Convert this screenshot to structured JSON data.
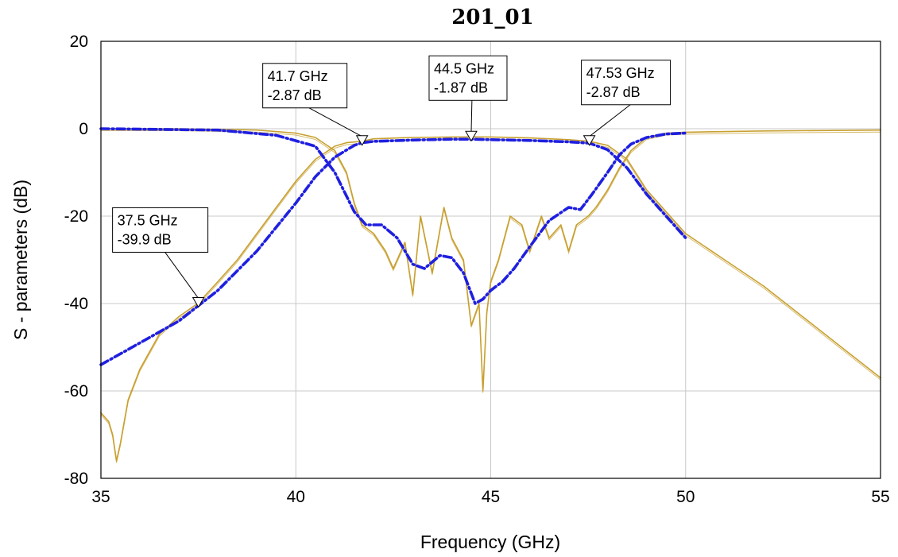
{
  "chart_data": {
    "type": "line",
    "title": "201_01",
    "xlabel": "Frequency (GHz)",
    "ylabel": "S - parameters (dB)",
    "xlim": [
      35,
      55
    ],
    "ylim": [
      -80,
      20
    ],
    "xticks": [
      35,
      40,
      45,
      50,
      55
    ],
    "yticks": [
      20,
      0,
      -20,
      -40,
      -60,
      -80
    ],
    "xtick_labels": [
      "35",
      "40",
      "45",
      "50",
      "55"
    ],
    "ytick_labels": [
      "20",
      "0",
      "-20",
      "-40",
      "-60",
      "-80"
    ],
    "grid": true,
    "series": [
      {
        "role": "measured-S21",
        "color": "#c8a030",
        "style": "solid",
        "x": [
          35,
          35.2,
          35.3,
          35.4,
          35.5,
          35.7,
          36,
          36.5,
          37,
          37.5,
          38,
          38.5,
          39,
          39.5,
          40,
          40.5,
          41,
          41.3,
          41.7,
          42,
          43,
          44,
          44.5,
          45,
          46,
          47,
          47.53,
          48,
          48.5,
          49,
          50,
          51,
          52,
          53,
          54,
          55
        ],
        "y": [
          -65,
          -67,
          -70,
          -76,
          -72,
          -62,
          -55,
          -47,
          -43,
          -39.9,
          -35,
          -30,
          -24,
          -18,
          -12,
          -7,
          -4,
          -3.2,
          -2.87,
          -2.3,
          -2,
          -1.9,
          -1.87,
          -1.9,
          -2.1,
          -2.5,
          -2.87,
          -3.8,
          -7,
          -14,
          -24,
          -30,
          -36,
          -43,
          -50,
          -57
        ]
      },
      {
        "role": "measured-S11",
        "color": "#c8a030",
        "style": "solid",
        "x": [
          35,
          37,
          39,
          40,
          40.5,
          41,
          41.3,
          41.5,
          41.7,
          42,
          42.3,
          42.5,
          42.8,
          43,
          43.2,
          43.5,
          43.8,
          44,
          44.3,
          44.5,
          44.7,
          44.8,
          44.9,
          45,
          45.2,
          45.5,
          45.8,
          46,
          46.3,
          46.5,
          46.8,
          47,
          47.2,
          47.5,
          47.7,
          48,
          48.3,
          48.6,
          49,
          49.5,
          50,
          52,
          55
        ],
        "y": [
          0,
          0,
          -0.3,
          -1,
          -2,
          -5,
          -10,
          -17,
          -22,
          -24,
          -28,
          -32,
          -26,
          -38,
          -20,
          -33,
          -18,
          -25,
          -30,
          -45,
          -40,
          -60,
          -42,
          -35,
          -30,
          -20,
          -22,
          -28,
          -20,
          -25,
          -22,
          -28,
          -22,
          -20,
          -18,
          -14,
          -9,
          -5,
          -2,
          -1,
          -0.8,
          -0.5,
          -0.3
        ]
      },
      {
        "role": "simulated-S21",
        "color": "#1f1fe0",
        "style": "dashdot",
        "x": [
          35,
          36,
          37,
          38,
          39,
          40,
          40.5,
          41,
          41.5,
          41.7,
          42,
          43,
          44,
          44.5,
          45,
          46,
          47,
          47.53,
          48,
          48.5,
          49,
          49.5,
          50
        ],
        "y": [
          -54,
          -49,
          -44,
          -37,
          -28,
          -17,
          -11,
          -6.5,
          -3.8,
          -3.2,
          -2.9,
          -2.6,
          -2.4,
          -2.4,
          -2.5,
          -2.7,
          -3.0,
          -3.3,
          -4.8,
          -9,
          -15,
          -20,
          -25
        ]
      },
      {
        "role": "simulated-S11",
        "color": "#1f1fe0",
        "style": "dashdot",
        "x": [
          35,
          38,
          39.5,
          40.5,
          41,
          41.5,
          41.8,
          42.2,
          42.6,
          43,
          43.3,
          43.7,
          44,
          44.3,
          44.6,
          44.8,
          45,
          45.3,
          45.6,
          46,
          46.5,
          47,
          47.3,
          47.6,
          48,
          48.3,
          48.6,
          49,
          49.5,
          50
        ],
        "y": [
          0,
          -0.3,
          -1.5,
          -4,
          -10,
          -19,
          -22,
          -22,
          -25,
          -31,
          -32,
          -29,
          -29.5,
          -33,
          -40,
          -39,
          -37,
          -35,
          -32,
          -27,
          -21,
          -18,
          -18.5,
          -15,
          -10,
          -6,
          -3.5,
          -2,
          -1.2,
          -1
        ]
      }
    ],
    "markers": [
      {
        "x": 37.5,
        "y": -39.9,
        "line1": "37.5 GHz",
        "line2": "-39.9 dB"
      },
      {
        "x": 41.7,
        "y": -2.87,
        "line1": "41.7 GHz",
        "line2": "-2.87 dB"
      },
      {
        "x": 44.5,
        "y": -1.87,
        "line1": "44.5 GHz",
        "line2": "-1.87 dB"
      },
      {
        "x": 47.53,
        "y": -2.87,
        "line1": "47.53 GHz",
        "line2": "-2.87 dB"
      }
    ]
  }
}
